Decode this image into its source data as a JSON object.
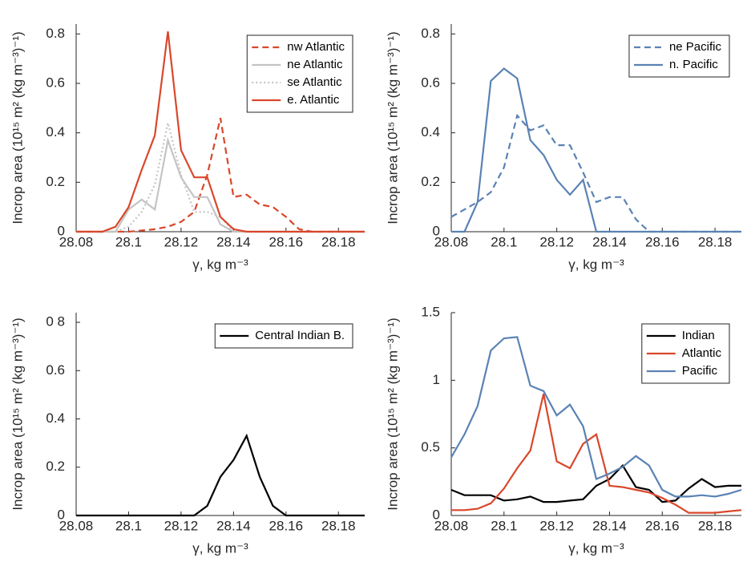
{
  "chart_data": [
    {
      "type": "line",
      "x": [
        28.08,
        28.085,
        28.09,
        28.095,
        28.1,
        28.105,
        28.11,
        28.115,
        28.12,
        28.125,
        28.13,
        28.135,
        28.14,
        28.145,
        28.15,
        28.155,
        28.16,
        28.165,
        28.17,
        28.175,
        28.18,
        28.185,
        28.19
      ],
      "xlim": [
        28.08,
        28.19
      ],
      "xticks": [
        28.08,
        28.1,
        28.12,
        28.14,
        28.16,
        28.18
      ],
      "ylim": [
        0,
        0.84
      ],
      "yticks": [
        0,
        0.2,
        0.4,
        0.6,
        0.8
      ],
      "xlabel": "γ, kg m⁻³",
      "ylabel": "Incrop area (10¹⁵ m² (kg m⁻³)⁻¹)",
      "legend": "northeast",
      "series": [
        {
          "name": "nw Atlantic",
          "color": "#d9472b",
          "dash": "dashed",
          "values": [
            0,
            0,
            0,
            0,
            0,
            0.005,
            0.01,
            0.02,
            0.04,
            0.08,
            0.23,
            0.46,
            0.14,
            0.15,
            0.11,
            0.1,
            0.06,
            0.01,
            0,
            0,
            0,
            0,
            0
          ]
        },
        {
          "name": "ne Atlantic",
          "color": "#c4c4c4",
          "dash": "solid",
          "values": [
            0,
            0,
            0,
            0,
            0.09,
            0.13,
            0.09,
            0.37,
            0.22,
            0.14,
            0.14,
            0.03,
            0,
            0,
            0,
            0,
            0,
            0,
            0,
            0,
            0,
            0,
            0
          ]
        },
        {
          "name": "se Atlantic",
          "color": "#c4c4c4",
          "dash": "dotted",
          "values": [
            0,
            0,
            0,
            0,
            0.02,
            0.08,
            0.19,
            0.44,
            0.23,
            0.08,
            0.08,
            0.06,
            0,
            0,
            0,
            0,
            0,
            0,
            0,
            0,
            0,
            0,
            0
          ]
        },
        {
          "name": "e. Atlantic",
          "color": "#d9472b",
          "dash": "solid",
          "values": [
            0,
            0,
            0,
            0.02,
            0.1,
            0.25,
            0.39,
            0.81,
            0.33,
            0.22,
            0.22,
            0.06,
            0.01,
            0,
            0,
            0,
            0,
            0,
            0,
            0,
            0,
            0,
            0
          ]
        }
      ]
    },
    {
      "type": "line",
      "x": [
        28.08,
        28.085,
        28.09,
        28.095,
        28.1,
        28.105,
        28.11,
        28.115,
        28.12,
        28.125,
        28.13,
        28.135,
        28.14,
        28.145,
        28.15,
        28.155,
        28.16,
        28.165,
        28.17,
        28.175,
        28.18,
        28.185,
        28.19
      ],
      "xlim": [
        28.08,
        28.19
      ],
      "xticks": [
        28.08,
        28.1,
        28.12,
        28.14,
        28.16,
        28.18
      ],
      "ylim": [
        0,
        0.84
      ],
      "yticks": [
        0,
        0.2,
        0.4,
        0.6,
        0.8
      ],
      "xlabel": "γ, kg m⁻³",
      "ylabel": "Incrop area (10¹⁵ m² (kg m⁻³)⁻¹)",
      "legend": "northeast",
      "series": [
        {
          "name": "ne Pacific",
          "color": "#5a82b4",
          "dash": "dashed",
          "values": [
            0.06,
            0.09,
            0.12,
            0.16,
            0.26,
            0.47,
            0.41,
            0.43,
            0.35,
            0.35,
            0.24,
            0.12,
            0.14,
            0.14,
            0.05,
            0,
            0,
            0,
            0,
            0,
            0,
            0,
            0
          ]
        },
        {
          "name": "n. Pacific",
          "color": "#5a82b4",
          "dash": "solid",
          "values": [
            0,
            0,
            0.12,
            0.61,
            0.66,
            0.62,
            0.37,
            0.31,
            0.21,
            0.15,
            0.21,
            0,
            0,
            0,
            0,
            0,
            0,
            0,
            0,
            0,
            0,
            0,
            0
          ]
        }
      ]
    },
    {
      "type": "line",
      "x": [
        28.08,
        28.085,
        28.09,
        28.095,
        28.1,
        28.105,
        28.11,
        28.115,
        28.12,
        28.125,
        28.13,
        28.135,
        28.14,
        28.145,
        28.15,
        28.155,
        28.16,
        28.165,
        28.17,
        28.175,
        28.18,
        28.185,
        28.19
      ],
      "xlim": [
        28.08,
        28.19
      ],
      "xticks": [
        28.08,
        28.1,
        28.12,
        28.14,
        28.16,
        28.18
      ],
      "ylim": [
        0,
        0.84
      ],
      "yticks": [
        0,
        0.2,
        0.4,
        0.6,
        {
          "value": 0.8,
          "label": "0 8"
        }
      ],
      "xlabel": "γ, kg m⁻³",
      "ylabel": "Incrop area (10¹⁵ m² (kg m⁻³)⁻¹)",
      "legend": "northeast",
      "series": [
        {
          "name": "Central Indian B.",
          "color": "#000000",
          "dash": "solid",
          "values": [
            0,
            0,
            0,
            0,
            0,
            0,
            0,
            0,
            0,
            0,
            0.04,
            0.16,
            0.23,
            0.33,
            0.16,
            0.04,
            0,
            0,
            0,
            0,
            0,
            0,
            0
          ]
        }
      ]
    },
    {
      "type": "line",
      "x": [
        28.08,
        28.085,
        28.09,
        28.095,
        28.1,
        28.105,
        28.11,
        28.115,
        28.12,
        28.125,
        28.13,
        28.135,
        28.14,
        28.145,
        28.15,
        28.155,
        28.16,
        28.165,
        28.17,
        28.175,
        28.18,
        28.185,
        28.19
      ],
      "xlim": [
        28.08,
        28.19
      ],
      "xticks": [
        28.08,
        28.1,
        28.12,
        28.14,
        28.16,
        28.18
      ],
      "ylim": [
        0,
        1.5
      ],
      "yticks": [
        0,
        0.5,
        1,
        1.5
      ],
      "xlabel": "γ, kg m⁻³",
      "ylabel": "Incrop area (10¹⁵ m² (kg m⁻³)⁻¹)",
      "legend": "northeast",
      "series": [
        {
          "name": "Indian",
          "color": "#000000",
          "dash": "solid",
          "values": [
            0.19,
            0.15,
            0.15,
            0.15,
            0.11,
            0.12,
            0.14,
            0.1,
            0.1,
            0.11,
            0.12,
            0.22,
            0.27,
            0.37,
            0.21,
            0.19,
            0.1,
            0.11,
            0.2,
            0.27,
            0.21,
            0.22,
            0.22
          ]
        },
        {
          "name": "Atlantic",
          "color": "#d9472b",
          "dash": "solid",
          "values": [
            0.04,
            0.04,
            0.05,
            0.09,
            0.2,
            0.35,
            0.48,
            0.9,
            0.4,
            0.35,
            0.53,
            0.6,
            0.22,
            0.21,
            0.19,
            0.17,
            0.13,
            0.08,
            0.02,
            0.02,
            0.02,
            0.03,
            0.04
          ]
        },
        {
          "name": "Pacific",
          "color": "#5a82b4",
          "dash": "solid",
          "values": [
            0.43,
            0.6,
            0.81,
            1.22,
            1.31,
            1.32,
            0.96,
            0.92,
            0.74,
            0.82,
            0.66,
            0.27,
            0.31,
            0.36,
            0.44,
            0.37,
            0.19,
            0.14,
            0.14,
            0.15,
            0.14,
            0.16,
            0.19
          ]
        }
      ]
    }
  ]
}
